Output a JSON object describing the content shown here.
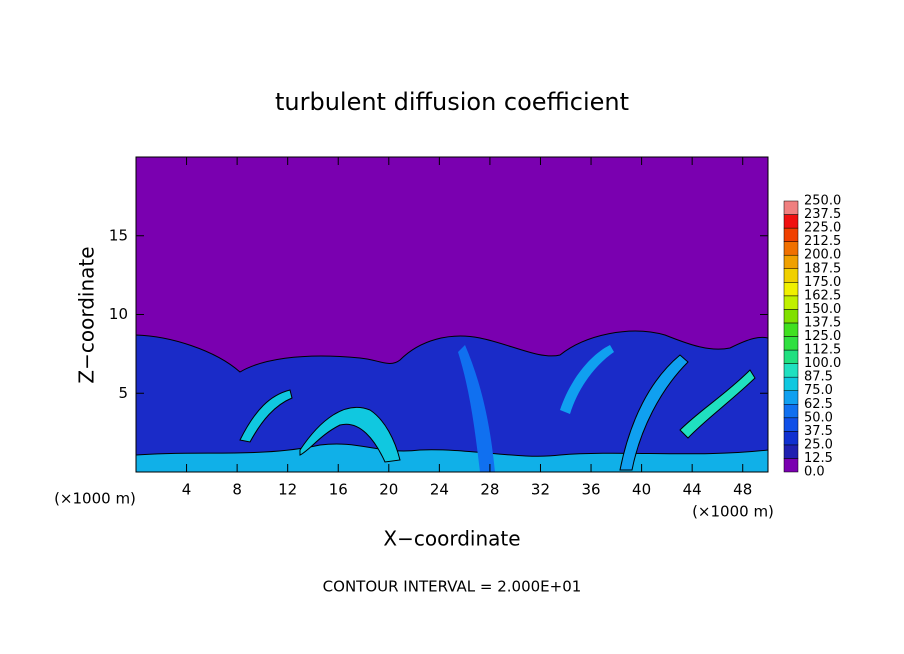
{
  "chart_data": {
    "type": "contour",
    "title": "turbulent diffusion coefficient",
    "xlabel": "X−coordinate",
    "ylabel": "Z−coordinate",
    "x_unit_left": "(×1000 m)",
    "x_unit_right": "(×1000 m)",
    "footer": "CONTOUR INTERVAL = 2.000E+01",
    "xlim": [
      0,
      50
    ],
    "ylim": [
      0,
      20
    ],
    "xticks": [
      4,
      8,
      12,
      16,
      20,
      24,
      28,
      32,
      36,
      40,
      44,
      48
    ],
    "yticks": [
      5,
      10,
      15
    ],
    "colorbar": {
      "levels": [
        {
          "value": 0,
          "label": "0.0"
        },
        {
          "value": 12.5,
          "label": "12.5"
        },
        {
          "value": 25,
          "label": "25.0"
        },
        {
          "value": 37.5,
          "label": "37.5"
        },
        {
          "value": 50,
          "label": "50.0"
        },
        {
          "value": 62.5,
          "label": "62.5"
        },
        {
          "value": 75,
          "label": "75.0"
        },
        {
          "value": 87.5,
          "label": "87.5"
        },
        {
          "value": 100,
          "label": "100.0"
        },
        {
          "value": 112.5,
          "label": "112.5"
        },
        {
          "value": 125,
          "label": "125.0"
        },
        {
          "value": 137.5,
          "label": "137.5"
        },
        {
          "value": 150,
          "label": "150.0"
        },
        {
          "value": 162.5,
          "label": "162.5"
        },
        {
          "value": 175,
          "label": "175.0"
        },
        {
          "value": 187.5,
          "label": "187.5"
        },
        {
          "value": 200,
          "label": "200.0"
        },
        {
          "value": 212.5,
          "label": "212.5"
        },
        {
          "value": 225,
          "label": "225.0"
        },
        {
          "value": 237.5,
          "label": "237.5"
        },
        {
          "value": 250,
          "label": "250.0"
        }
      ],
      "colors": [
        "#7a00b0",
        "#2020b0",
        "#1030d0",
        "#1050e8",
        "#1070f0",
        "#10a0f0",
        "#10c8e0",
        "#20e0c0",
        "#20e080",
        "#30e040",
        "#40e020",
        "#80e000",
        "#c0f000",
        "#f0f000",
        "#f0d000",
        "#f0a000",
        "#f07000",
        "#f04000",
        "#f01010",
        "#f08080"
      ]
    }
  }
}
